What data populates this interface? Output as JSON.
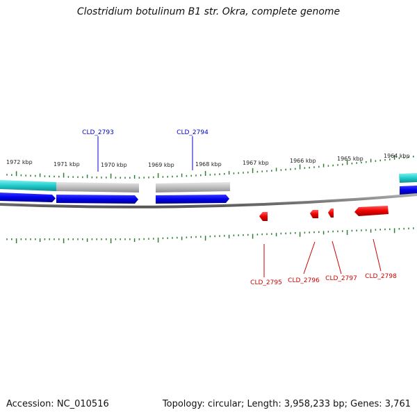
{
  "title": "Clostridium botulinum B1 str. Okra, complete genome",
  "colors": {
    "forward_gene": "#0000ee",
    "reverse_gene": "#ee0000",
    "cds_forward": "#33cccc",
    "cds_gray": "#b8b8b8",
    "ticks": "#2e7d32",
    "backbone": "#777777"
  },
  "scale_labels": [
    "1972 kbp",
    "1971 kbp",
    "1970 kbp",
    "1969 kbp",
    "1968 kbp",
    "1967 kbp",
    "1966 kbp",
    "1965 kbp",
    "1964 kbp"
  ],
  "forward_labels": [
    "CLD_2793",
    "CLD_2794"
  ],
  "reverse_labels": [
    "CLD_2795",
    "CLD_2796",
    "CLD_2797",
    "CLD_2798"
  ],
  "footer": {
    "accession": "Accession: NC_010516",
    "summary": "Topology: circular; Length: 3,958,233 bp; Genes: 3,761"
  }
}
